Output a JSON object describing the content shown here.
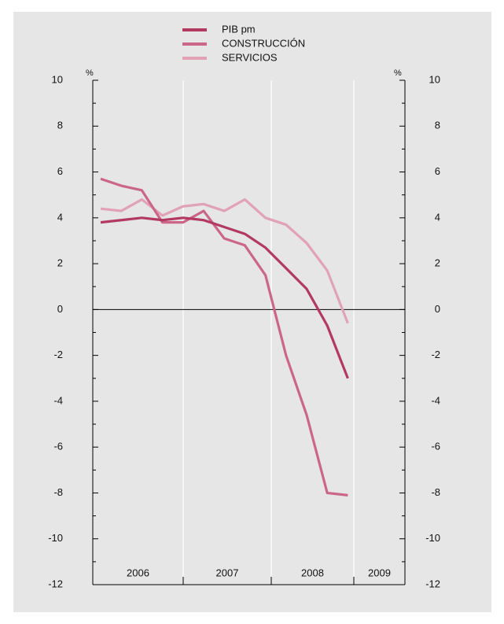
{
  "chart_data": {
    "type": "line",
    "y_unit": "%",
    "categories": [
      null,
      null,
      null,
      null,
      null,
      null,
      null,
      null,
      null,
      null,
      null,
      null,
      null
    ],
    "year_labels": [
      "2006",
      "2007",
      "2008",
      "2009"
    ],
    "series": [
      {
        "name": "PIB pm",
        "color": "#b23a60",
        "values": [
          3.8,
          3.9,
          4.0,
          3.9,
          4.0,
          3.9,
          3.6,
          3.3,
          2.7,
          1.8,
          0.9,
          -0.7,
          -3.0
        ]
      },
      {
        "name": "CONSTRUCCIÓN",
        "color": "#cc6688",
        "values": [
          5.7,
          5.4,
          5.2,
          3.8,
          3.8,
          4.3,
          3.1,
          2.8,
          1.5,
          -2.0,
          -4.6,
          -8.0,
          -8.1
        ]
      },
      {
        "name": "SERVICIOS",
        "color": "#e2a2b6",
        "values": [
          4.4,
          4.3,
          4.8,
          4.1,
          4.5,
          4.6,
          4.3,
          4.8,
          4.0,
          3.7,
          2.9,
          1.7,
          -0.6
        ]
      }
    ],
    "ylim": [
      -12,
      10
    ],
    "yticks": [
      -12,
      -10,
      -8,
      -6,
      -4,
      -2,
      0,
      2,
      4,
      6,
      8,
      10
    ],
    "y2lim": [
      -12,
      10
    ],
    "y2ticks": [
      -12,
      -10,
      -8,
      -6,
      -4,
      -2,
      0,
      2,
      4,
      6,
      8,
      10
    ],
    "zero_line": true,
    "legend": "top"
  }
}
